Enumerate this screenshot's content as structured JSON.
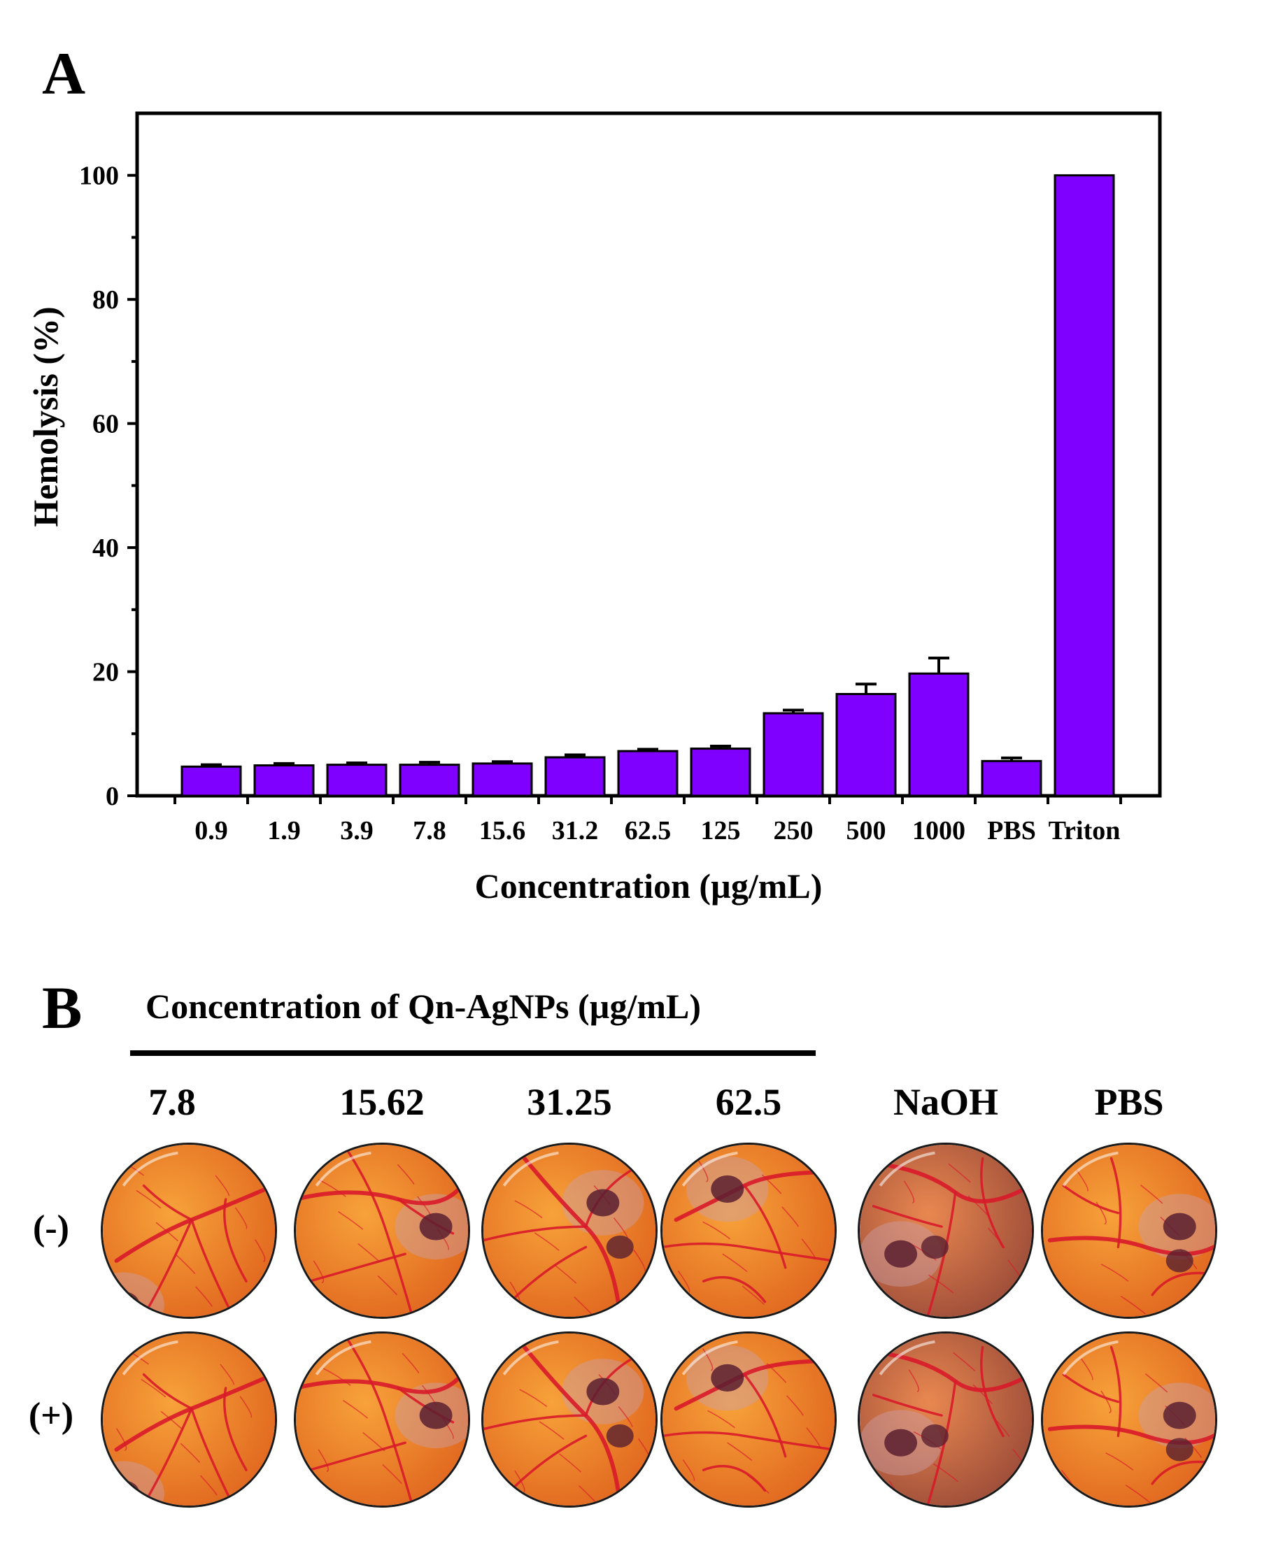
{
  "panel_a": {
    "letter": "A"
  },
  "panel_b": {
    "letter": "B",
    "heading": "Concentration of Qn-AgNPs (µg/mL)",
    "columns": [
      "7.8",
      "15.62",
      "31.25",
      "62.5",
      "NaOH",
      "PBS"
    ],
    "rows": [
      "(-)",
      "(+)"
    ]
  },
  "colors": {
    "bar": "#8000ff",
    "axis": "#000000",
    "membrane_bg": "#f08a2e",
    "vessel": "#d81a2a",
    "vessel_dark": "#5a2030"
  },
  "chart_data": {
    "type": "bar",
    "categories": [
      "0.9",
      "1.9",
      "3.9",
      "7.8",
      "15.6",
      "31.2",
      "62.5",
      "125",
      "250",
      "500",
      "1000",
      "PBS",
      "Triton"
    ],
    "values": [
      4.7,
      4.9,
      5.0,
      5.0,
      5.2,
      6.2,
      7.2,
      7.6,
      13.3,
      16.4,
      19.7,
      5.6,
      100
    ],
    "errors": [
      0.3,
      0.3,
      0.3,
      0.4,
      0.3,
      0.4,
      0.3,
      0.4,
      0.5,
      1.6,
      2.5,
      0.5,
      0
    ],
    "xlabel": "Concentration (µg/mL)",
    "ylabel": "Hemolysis (%)",
    "ylim": [
      0,
      110
    ],
    "yticks": [
      0,
      20,
      40,
      60,
      80,
      100
    ],
    "grid": false
  }
}
